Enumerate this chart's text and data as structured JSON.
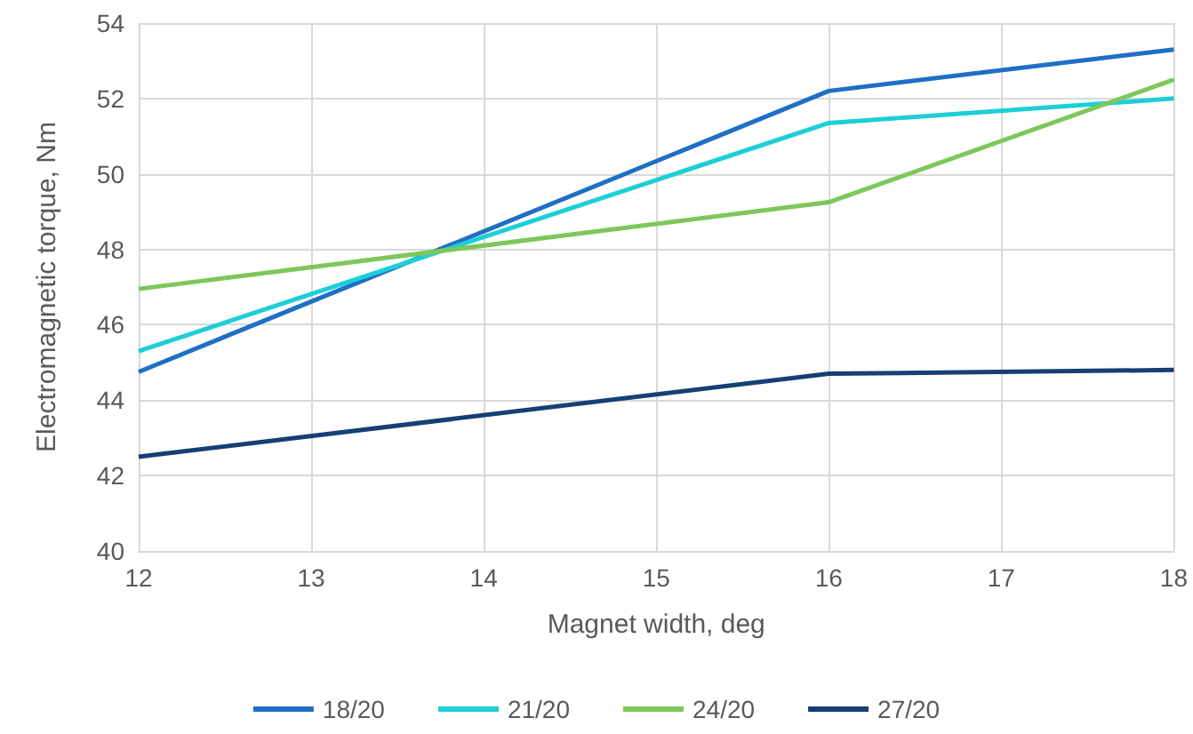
{
  "chart_data": {
    "type": "line",
    "xlabel": "Magnet width, deg",
    "ylabel": "Electromagnetic torque, Nm",
    "x": [
      12,
      16,
      18
    ],
    "series": [
      {
        "name": "18/20",
        "color": "#1f6fc5",
        "values": [
          44.75,
          52.2,
          53.3
        ]
      },
      {
        "name": "21/20",
        "color": "#1ccfd6",
        "values": [
          45.3,
          51.35,
          52.0
        ]
      },
      {
        "name": "24/20",
        "color": "#7dc75b",
        "values": [
          46.95,
          49.25,
          52.5
        ]
      },
      {
        "name": "27/20",
        "color": "#163f73",
        "values": [
          42.5,
          44.7,
          44.8
        ]
      }
    ],
    "xlim": [
      12,
      18
    ],
    "xticks": [
      12,
      13,
      14,
      15,
      16,
      17,
      18
    ],
    "ylim": [
      40,
      54
    ],
    "yticks": [
      40,
      42,
      44,
      46,
      48,
      50,
      52,
      54
    ],
    "grid": true,
    "legend": "bottom",
    "marker": "none",
    "line_style": "solid"
  }
}
